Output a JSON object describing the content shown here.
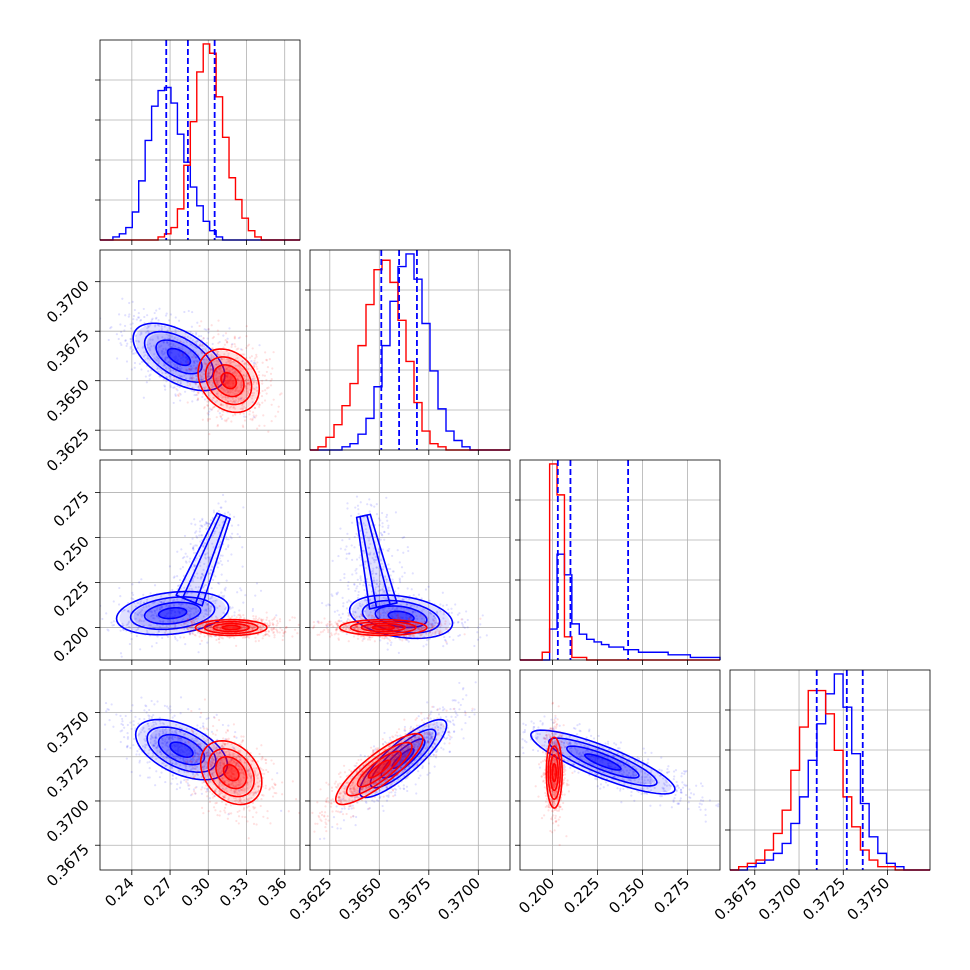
{
  "chart_data": {
    "type": "corner",
    "title": "",
    "grid": true,
    "colors": {
      "series_a": "#0000ff",
      "series_b": "#ff0000",
      "axis": "#000000",
      "grid": "#b0b0b0"
    },
    "series": [
      {
        "name": "blue",
        "color": "#0000ff",
        "means": [
          0.284,
          0.366,
          0.212,
          0.3727
        ],
        "quantiles": [
          [
            0.267,
            0.284,
            0.305
          ],
          [
            0.3651,
            0.366,
            0.3669
          ],
          [
            0.203,
            0.21,
            0.242
          ],
          [
            0.371,
            0.3727,
            0.3736
          ]
        ]
      },
      {
        "name": "red",
        "color": "#ff0000",
        "means": [
          0.316,
          0.365,
          0.201,
          0.3715
        ]
      }
    ],
    "params": [
      {
        "range": [
          0.215,
          0.372
        ],
        "ticks": [
          0.24,
          0.27,
          0.3,
          0.33,
          0.36
        ],
        "tick_labels": [
          "0.24",
          "0.27",
          "0.30",
          "0.33",
          "0.36"
        ]
      },
      {
        "range": [
          0.3615,
          0.3716
        ],
        "ticks": [
          0.3625,
          0.365,
          0.3675,
          0.37
        ],
        "tick_labels": [
          "0.3625",
          "0.3650",
          "0.3675",
          "0.3700"
        ]
      },
      {
        "range": [
          0.182,
          0.293
        ],
        "ticks": [
          0.2,
          0.225,
          0.25,
          0.275
        ],
        "tick_labels": [
          "0.200",
          "0.225",
          "0.250",
          "0.275"
        ]
      },
      {
        "range": [
          0.3661,
          0.3774
        ],
        "ticks": [
          0.3675,
          0.37,
          0.3725,
          0.375
        ],
        "tick_labels": [
          "0.3675",
          "0.3700",
          "0.3725",
          "0.3750"
        ]
      }
    ],
    "histograms": {
      "p0": {
        "blue": [
          0,
          0,
          1,
          2,
          4,
          9,
          19,
          32,
          43,
          48,
          49,
          44,
          34,
          25,
          17,
          11,
          6,
          3,
          1,
          0,
          0,
          0,
          0,
          0,
          0,
          0,
          0,
          0,
          0,
          0,
          0
        ],
        "red": [
          0,
          0,
          0,
          0,
          0,
          0,
          0,
          0,
          0,
          1,
          2,
          4,
          10,
          24,
          38,
          54,
          63,
          60,
          46,
          33,
          20,
          13,
          7,
          3,
          1,
          0,
          0,
          0,
          0,
          0,
          0
        ]
      },
      "p1": {
        "red": [
          0,
          1,
          4,
          8,
          14,
          21,
          33,
          46,
          57,
          60,
          53,
          41,
          28,
          15,
          6,
          2,
          1,
          0,
          0,
          0,
          0,
          0,
          0,
          0,
          0
        ],
        "blue": [
          0,
          0,
          0,
          0,
          1,
          2,
          5,
          10,
          20,
          33,
          47,
          58,
          62,
          54,
          40,
          25,
          13,
          6,
          3,
          1,
          0,
          0,
          0,
          0,
          0
        ]
      },
      "p2": {
        "red": [
          0,
          0,
          0,
          3,
          76,
          64,
          9,
          1,
          1,
          0,
          0,
          0,
          0,
          0,
          0,
          0,
          0,
          0,
          0,
          0,
          0,
          0,
          0,
          0,
          0,
          0,
          0
        ],
        "blue": [
          0,
          0,
          0,
          0,
          12,
          41,
          33,
          14,
          10,
          8,
          7,
          6,
          5,
          5,
          4,
          4,
          3,
          3,
          3,
          3,
          2,
          2,
          2,
          1,
          1,
          1,
          1
        ]
      },
      "p3": {
        "red": [
          0,
          1,
          2,
          3,
          6,
          11,
          18,
          30,
          43,
          54,
          54,
          47,
          36,
          22,
          13,
          6,
          3,
          1,
          1,
          0,
          0,
          0,
          0
        ],
        "blue": [
          0,
          0,
          1,
          2,
          3,
          5,
          8,
          14,
          22,
          33,
          44,
          53,
          59,
          49,
          35,
          20,
          10,
          5,
          2,
          1,
          0,
          0,
          0
        ]
      }
    },
    "pairs": [
      {
        "x": 0,
        "y": 1,
        "blue": {
          "center": [
            0.277,
            0.3662
          ],
          "sd": [
            0.018,
            0.00085
          ],
          "rho": -0.55
        },
        "red": {
          "center": [
            0.316,
            0.365
          ],
          "sd": [
            0.012,
            0.0008
          ],
          "rho": -0.25
        }
      },
      {
        "x": 0,
        "y": 2,
        "blue": {
          "center": [
            0.272,
            0.208
          ],
          "sd": [
            0.022,
            0.006
          ],
          "rho": 0.25,
          "arm": {
            "from": [
              0.285,
              0.215
            ],
            "to": [
              0.312,
              0.262
            ],
            "width": 0.016
          }
        },
        "red": {
          "center": [
            0.318,
            0.2
          ],
          "sd": [
            0.014,
            0.0022
          ],
          "rho": 0.0
        }
      },
      {
        "x": 1,
        "y": 2,
        "blue": {
          "center": [
            0.3661,
            0.206
          ],
          "sd": [
            0.0013,
            0.006
          ],
          "rho": -0.3,
          "arm": {
            "from": [
              0.3652,
              0.212
            ],
            "to": [
              0.3642,
              0.262
            ],
            "width": 0.0012
          }
        },
        "red": {
          "center": [
            0.3652,
            0.2
          ],
          "sd": [
            0.0011,
            0.0022
          ],
          "rho": 0.0
        }
      },
      {
        "x": 0,
        "y": 3,
        "blue": {
          "center": [
            0.279,
            0.3729
          ],
          "sd": [
            0.018,
            0.00085
          ],
          "rho": -0.5
        },
        "red": {
          "center": [
            0.318,
            0.3716
          ],
          "sd": [
            0.012,
            0.0009
          ],
          "rho": -0.3
        }
      },
      {
        "x": 1,
        "y": 3,
        "blue": {
          "center": [
            0.3662,
            0.3724
          ],
          "sd": [
            0.0011,
            0.0011
          ],
          "rho": 0.85
        },
        "red": {
          "center": [
            0.365,
            0.3718
          ],
          "sd": [
            0.0011,
            0.001
          ],
          "rho": 0.85
        }
      },
      {
        "x": 2,
        "y": 3,
        "blue": {
          "center": [
            0.228,
            0.3722
          ],
          "sd": [
            0.02,
            0.0009
          ],
          "rho": -0.85
        },
        "red": {
          "center": [
            0.201,
            0.3716
          ],
          "sd": [
            0.0022,
            0.001
          ],
          "rho": 0.0
        }
      }
    ]
  }
}
